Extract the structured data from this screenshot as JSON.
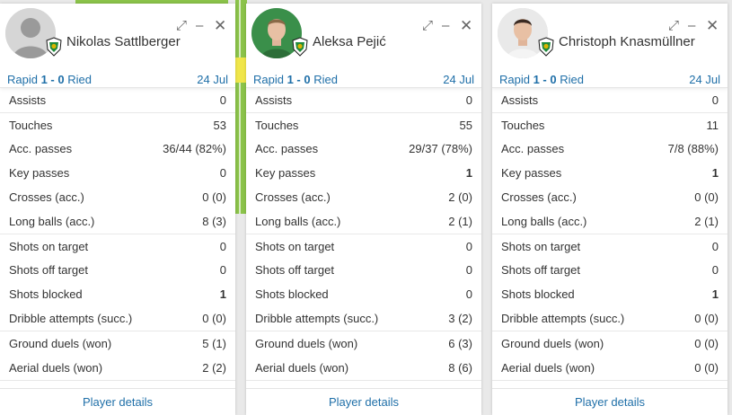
{
  "colors": {
    "link": "#1f6fa8",
    "pitch": "#8bc34a"
  },
  "icons": {
    "expand": "expand-icon",
    "minimize": "minimize-icon",
    "close": "close-icon",
    "club": "rapid-crest-icon"
  },
  "controls": {
    "expand": "⤢",
    "minimize": "–",
    "close": "✕"
  },
  "cards": [
    {
      "player": "Nikolas Sattlberger",
      "avatar": "placeholder",
      "match_home": "Rapid",
      "match_score": "1 - 0",
      "match_away": "Ried",
      "date": "24 Jul",
      "footer": "Player details",
      "stats": [
        [
          "Assists",
          "0"
        ],
        [
          "Touches",
          "53"
        ],
        [
          "Acc. passes",
          "36/44 (82%)"
        ],
        [
          "Key passes",
          "0"
        ],
        [
          "Crosses (acc.)",
          "0 (0)"
        ],
        [
          "Long balls (acc.)",
          "8 (3)"
        ],
        [
          "Shots on target",
          "0"
        ],
        [
          "Shots off target",
          "0"
        ],
        [
          "Shots blocked",
          "1"
        ],
        [
          "Dribble attempts (succ.)",
          "0 (0)"
        ],
        [
          "Ground duels (won)",
          "5 (1)"
        ],
        [
          "Aerial duels (won)",
          "2 (2)"
        ]
      ]
    },
    {
      "player": "Aleksa Pejić",
      "avatar": "photo-green",
      "match_home": "Rapid",
      "match_score": "1 - 0",
      "match_away": "Ried",
      "date": "24 Jul",
      "footer": "Player details",
      "stats": [
        [
          "Assists",
          "0"
        ],
        [
          "Touches",
          "55"
        ],
        [
          "Acc. passes",
          "29/37 (78%)"
        ],
        [
          "Key passes",
          "1"
        ],
        [
          "Crosses (acc.)",
          "2 (0)"
        ],
        [
          "Long balls (acc.)",
          "2 (1)"
        ],
        [
          "Shots on target",
          "0"
        ],
        [
          "Shots off target",
          "0"
        ],
        [
          "Shots blocked",
          "0"
        ],
        [
          "Dribble attempts (succ.)",
          "3 (2)"
        ],
        [
          "Ground duels (won)",
          "6 (3)"
        ],
        [
          "Aerial duels (won)",
          "8 (6)"
        ]
      ]
    },
    {
      "player": "Christoph Knasmüllner",
      "avatar": "photo-white",
      "match_home": "Rapid",
      "match_score": "1 - 0",
      "match_away": "Ried",
      "date": "24 Jul",
      "footer": "Player details",
      "stats": [
        [
          "Assists",
          "0"
        ],
        [
          "Touches",
          "11"
        ],
        [
          "Acc. passes",
          "7/8 (88%)"
        ],
        [
          "Key passes",
          "1"
        ],
        [
          "Crosses (acc.)",
          "0 (0)"
        ],
        [
          "Long balls (acc.)",
          "2 (1)"
        ],
        [
          "Shots on target",
          "0"
        ],
        [
          "Shots off target",
          "0"
        ],
        [
          "Shots blocked",
          "1"
        ],
        [
          "Dribble attempts (succ.)",
          "0 (0)"
        ],
        [
          "Ground duels (won)",
          "0 (0)"
        ],
        [
          "Aerial duels (won)",
          "0 (0)"
        ]
      ]
    }
  ]
}
